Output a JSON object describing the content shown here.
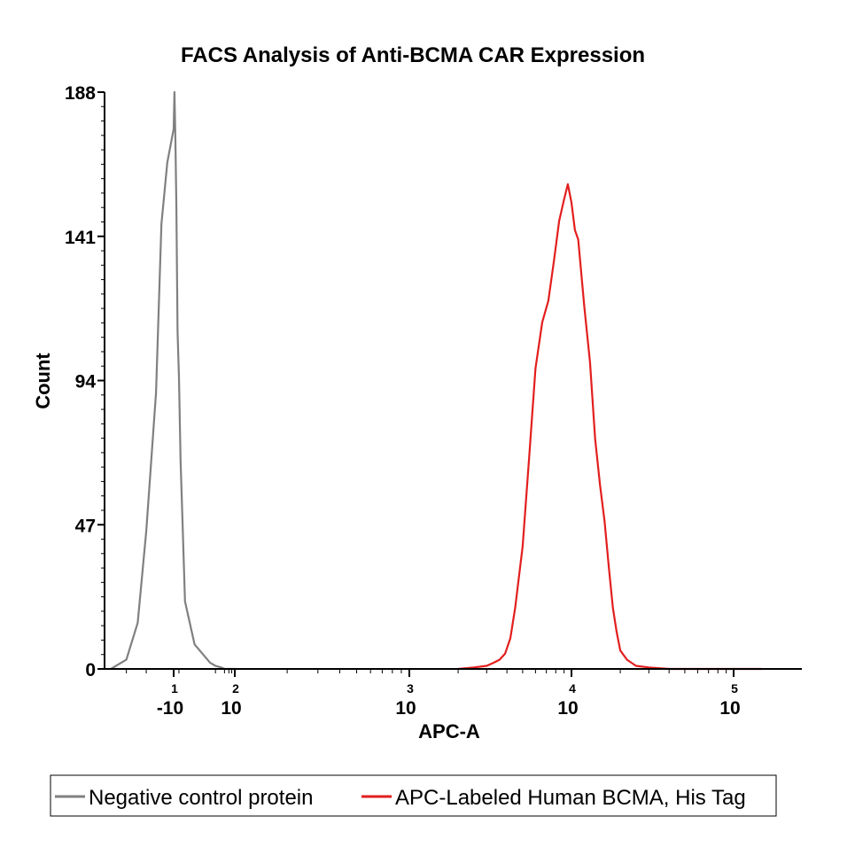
{
  "chart_data": {
    "type": "line",
    "title": "FACS Analysis of Anti-BCMA CAR Expression",
    "xlabel": "APC-A",
    "ylabel": "Count",
    "x_scale": "biexponential",
    "ylim": [
      0,
      188
    ],
    "y_ticks": [
      0,
      47,
      94,
      141,
      188
    ],
    "x_ticks": [
      {
        "value": -10,
        "label": "-10",
        "exponent": "1"
      },
      {
        "value": 100,
        "label": "10",
        "exponent": "2"
      },
      {
        "value": 1000,
        "label": "10",
        "exponent": "3"
      },
      {
        "value": 10000,
        "label": "10",
        "exponent": "4"
      },
      {
        "value": 100000,
        "label": "10",
        "exponent": "5"
      }
    ],
    "legend_position": "bottom",
    "grid": false,
    "series": [
      {
        "name": "Negative control protein",
        "color": "#808080",
        "x": [
          -25,
          -20,
          -17,
          -15,
          -13,
          -12,
          -11,
          -10,
          -9,
          -8,
          -7,
          -6,
          -5,
          -4,
          -3,
          -2,
          0,
          5,
          10,
          20,
          30,
          50,
          70,
          100
        ],
        "y": [
          0,
          3,
          15,
          45,
          90,
          145,
          165,
          176,
          188,
          172,
          150,
          110,
          95,
          68,
          48,
          22,
          8,
          2,
          1,
          0.5,
          0,
          0,
          0,
          0
        ]
      },
      {
        "name": "APC-Labeled Human BCMA, His Tag",
        "color": "#e31e1e",
        "x": [
          2000,
          2500,
          3000,
          3300,
          3600,
          3900,
          4200,
          4500,
          5000,
          5500,
          6000,
          6600,
          7200,
          7800,
          8400,
          9000,
          9500,
          10000,
          10500,
          11000,
          12000,
          13000,
          14000,
          15000,
          16000,
          17000,
          18000,
          19000,
          20000,
          22000,
          25000,
          30000,
          40000,
          60000,
          100000,
          150000
        ],
        "y": [
          0,
          0.5,
          1,
          2,
          3,
          5,
          10,
          20,
          40,
          70,
          98,
          113,
          120,
          133,
          146,
          153,
          158,
          152,
          143,
          140,
          118,
          100,
          75,
          60,
          48,
          33,
          20,
          12,
          6,
          3,
          1,
          0.5,
          0,
          0,
          0,
          0
        ]
      }
    ]
  }
}
